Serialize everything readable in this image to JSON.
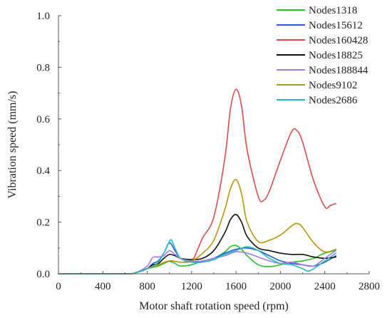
{
  "chart_data": {
    "type": "line",
    "xlabel": "Motor shaft rotation speed (rpm)",
    "ylabel": "Vibration speed (mm/s)",
    "xlim": [
      0,
      2800
    ],
    "ylim": [
      0,
      1.0
    ],
    "xticks": [
      0,
      400,
      800,
      1200,
      1600,
      2000,
      2400,
      2800
    ],
    "yticks": [
      0.0,
      0.2,
      0.4,
      0.6,
      0.8,
      1.0
    ],
    "xtick_labels": [
      "0",
      "400",
      "800",
      "1200",
      "1600",
      "2000",
      "2400",
      "2800"
    ],
    "ytick_labels": [
      "0.0",
      "0.2",
      "0.4",
      "0.6",
      "0.8",
      "1.0"
    ],
    "grid": false,
    "legend_position": "top-right",
    "series": [
      {
        "name": "Nodes1318",
        "color": "#22c422",
        "x": [
          0,
          600,
          700,
          800,
          900,
          950,
          1000,
          1050,
          1100,
          1200,
          1300,
          1400,
          1500,
          1550,
          1600,
          1650,
          1700,
          1800,
          1900,
          2000,
          2100,
          2200,
          2300,
          2400,
          2500
        ],
        "y": [
          0.0,
          0.0,
          0.005,
          0.02,
          0.03,
          0.04,
          0.048,
          0.04,
          0.03,
          0.035,
          0.05,
          0.06,
          0.085,
          0.105,
          0.11,
          0.095,
          0.07,
          0.035,
          0.028,
          0.035,
          0.045,
          0.05,
          0.06,
          0.08,
          0.09
        ]
      },
      {
        "name": "Nodes15612",
        "color": "#1f5fd6",
        "x": [
          0,
          600,
          700,
          800,
          850,
          900,
          950,
          1000,
          1050,
          1100,
          1200,
          1300,
          1400,
          1500,
          1600,
          1700,
          1800,
          1900,
          2000,
          2100,
          2200,
          2300,
          2400,
          2500
        ],
        "y": [
          0.0,
          0.0,
          0.005,
          0.02,
          0.04,
          0.05,
          0.08,
          0.12,
          0.09,
          0.06,
          0.045,
          0.05,
          0.06,
          0.08,
          0.095,
          0.1,
          0.09,
          0.07,
          0.05,
          0.04,
          0.035,
          0.03,
          0.045,
          0.07
        ]
      },
      {
        "name": "Nodes160428",
        "color": "#e04b4b",
        "x": [
          0,
          600,
          700,
          800,
          900,
          1000,
          1100,
          1200,
          1250,
          1300,
          1400,
          1500,
          1550,
          1600,
          1650,
          1700,
          1800,
          1850,
          1900,
          2000,
          2100,
          2150,
          2200,
          2300,
          2400,
          2450,
          2500
        ],
        "y": [
          0.0,
          0.0,
          0.005,
          0.02,
          0.035,
          0.05,
          0.045,
          0.05,
          0.09,
          0.14,
          0.22,
          0.45,
          0.64,
          0.715,
          0.65,
          0.48,
          0.3,
          0.285,
          0.32,
          0.44,
          0.55,
          0.555,
          0.51,
          0.36,
          0.26,
          0.265,
          0.272
        ]
      },
      {
        "name": "Nodes18825",
        "color": "#111111",
        "x": [
          0,
          600,
          700,
          800,
          850,
          900,
          950,
          1000,
          1050,
          1100,
          1200,
          1300,
          1400,
          1500,
          1550,
          1600,
          1650,
          1700,
          1800,
          1900,
          2000,
          2100,
          2200,
          2300,
          2400,
          2500
        ],
        "y": [
          0.0,
          0.0,
          0.005,
          0.02,
          0.035,
          0.04,
          0.06,
          0.075,
          0.07,
          0.06,
          0.055,
          0.06,
          0.09,
          0.16,
          0.21,
          0.23,
          0.2,
          0.145,
          0.1,
          0.09,
          0.08,
          0.075,
          0.075,
          0.065,
          0.06,
          0.065
        ]
      },
      {
        "name": "Nodes188844",
        "color": "#a57be0",
        "x": [
          0,
          600,
          700,
          800,
          850,
          900,
          950,
          1000,
          1050,
          1100,
          1200,
          1300,
          1400,
          1500,
          1600,
          1700,
          1800,
          1900,
          2000,
          2100,
          2200,
          2300,
          2400,
          2500
        ],
        "y": [
          0.0,
          0.0,
          0.005,
          0.03,
          0.063,
          0.065,
          0.07,
          0.09,
          0.075,
          0.06,
          0.05,
          0.05,
          0.06,
          0.07,
          0.085,
          0.08,
          0.065,
          0.05,
          0.04,
          0.045,
          0.035,
          0.03,
          0.06,
          0.09
        ]
      },
      {
        "name": "Nodes9102",
        "color": "#b8960c",
        "x": [
          0,
          600,
          700,
          800,
          900,
          1000,
          1100,
          1200,
          1300,
          1400,
          1500,
          1550,
          1600,
          1650,
          1700,
          1800,
          1900,
          2000,
          2100,
          2150,
          2200,
          2300,
          2400,
          2500
        ],
        "y": [
          0.0,
          0.0,
          0.005,
          0.02,
          0.035,
          0.05,
          0.045,
          0.05,
          0.08,
          0.13,
          0.25,
          0.33,
          0.365,
          0.31,
          0.2,
          0.125,
          0.13,
          0.15,
          0.185,
          0.195,
          0.18,
          0.12,
          0.085,
          0.095
        ]
      },
      {
        "name": "Nodes2686",
        "color": "#26b8c8",
        "x": [
          0,
          600,
          700,
          800,
          850,
          900,
          950,
          1000,
          1020,
          1050,
          1100,
          1200,
          1300,
          1400,
          1500,
          1600,
          1700,
          1800,
          1900,
          2000,
          2100,
          2200,
          2250,
          2300,
          2400,
          2500
        ],
        "y": [
          0.0,
          0.0,
          0.005,
          0.02,
          0.03,
          0.045,
          0.08,
          0.125,
          0.13,
          0.1,
          0.06,
          0.045,
          0.045,
          0.055,
          0.075,
          0.09,
          0.105,
          0.09,
          0.06,
          0.04,
          0.035,
          0.02,
          0.01,
          0.02,
          0.05,
          0.08
        ]
      }
    ]
  }
}
